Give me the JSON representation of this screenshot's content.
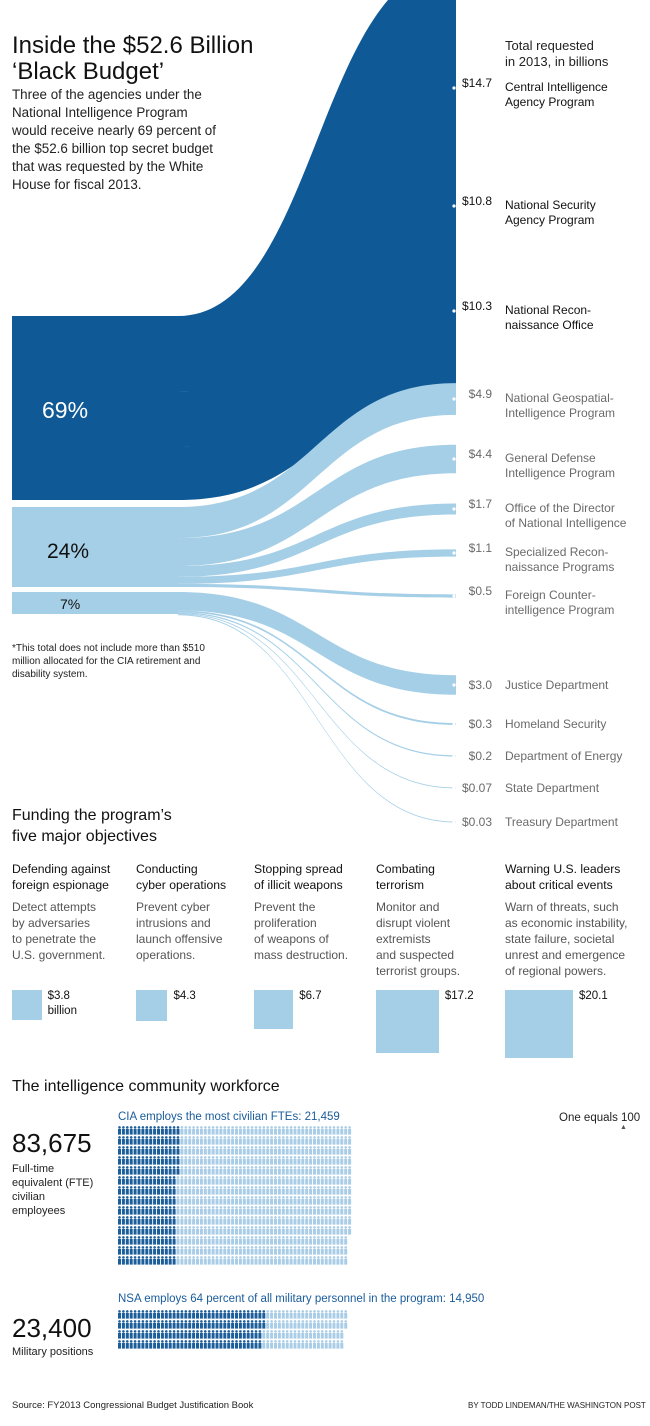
{
  "header": {
    "title_line1": "Inside the $52.6 Billion",
    "title_line2": "‘Black Budget’",
    "intro": "Three of the agencies under the National Intelligence Program would receive nearly 69 percent of the $52.6 billion top secret budget that was requested by the White House for fiscal 2013.",
    "total_label_line1": "Total requested",
    "total_label_line2": "in 2013, in billions"
  },
  "chart_data": [
    {
      "type": "flow",
      "title": "Inside the $52.6 Billion ‘Black Budget’",
      "unit": "billions of dollars",
      "groups": [
        {
          "label": "69%",
          "share": 69
        },
        {
          "label": "24%",
          "share": 24
        },
        {
          "label": "7%",
          "share": 7
        }
      ],
      "agencies": [
        {
          "name_line1": "Central Intelligence",
          "name_line2": "Agency Program",
          "value": 14.7,
          "amount": "$14.7",
          "group": 0
        },
        {
          "name_line1": "National Security",
          "name_line2": "Agency Program",
          "value": 10.8,
          "amount": "$10.8",
          "group": 0
        },
        {
          "name_line1": "National Recon-",
          "name_line2": "naissance Office",
          "value": 10.3,
          "amount": "$10.3",
          "group": 0
        },
        {
          "name_line1": "National Geospatial-",
          "name_line2": "Intelligence Program",
          "value": 4.9,
          "amount": "$4.9",
          "group": 1
        },
        {
          "name_line1": "General Defense",
          "name_line2": "Intelligence Program",
          "value": 4.4,
          "amount": "$4.4",
          "group": 1
        },
        {
          "name_line1": "Office of the Director",
          "name_line2": "of National Intelligence",
          "value": 1.7,
          "amount": "$1.7",
          "group": 1
        },
        {
          "name_line1": "Specialized Recon-",
          "name_line2": "naissance Programs",
          "value": 1.1,
          "amount": "$1.1",
          "group": 1
        },
        {
          "name_line1": "Foreign Counter-",
          "name_line2": "intelligence Program",
          "value": 0.5,
          "amount": "$0.5",
          "group": 1
        },
        {
          "name_line1": "Justice Department",
          "name_line2": "",
          "value": 3.0,
          "amount": "$3.0",
          "group": 2
        },
        {
          "name_line1": "Homeland Security",
          "name_line2": "",
          "value": 0.3,
          "amount": "$0.3",
          "group": 2
        },
        {
          "name_line1": "Department of Energy",
          "name_line2": "",
          "value": 0.2,
          "amount": "$0.2",
          "group": 2
        },
        {
          "name_line1": "State Department",
          "name_line2": "",
          "value": 0.07,
          "amount": "$0.07",
          "group": 2
        },
        {
          "name_line1": "Treasury Department",
          "name_line2": "",
          "value": 0.03,
          "amount": "$0.03",
          "group": 2
        }
      ]
    },
    {
      "type": "bar",
      "title": "Funding the program’s five major objectives",
      "unit": "billions of dollars",
      "categories": [
        "Defending against foreign espionage",
        "Conducting cyber operations",
        "Stopping spread of illicit weapons",
        "Combating terrorism",
        "Warning U.S. leaders about critical events"
      ],
      "values": [
        3.8,
        4.3,
        6.7,
        17.2,
        20.1
      ]
    },
    {
      "type": "pictogram",
      "title": "The intelligence community workforce",
      "unit": "One equals 100",
      "series": [
        {
          "name": "Full-time equivalent (FTE) civilian employees",
          "total": 83675,
          "highlight_name": "CIA",
          "highlight": 21459
        },
        {
          "name": "Military positions",
          "total": 23400,
          "highlight_name": "NSA",
          "highlight": 14950
        }
      ]
    }
  ],
  "footnote": "*This total does not include more than $510 million allocated for the CIA retirement and disability system.",
  "objectives": {
    "title_line1": "Funding the program’s",
    "title_line2": "five major objectives",
    "items": [
      {
        "title_line1": "Defending against",
        "title_line2": "foreign espionage",
        "desc": [
          "Detect attempts",
          "by adversaries",
          "to penetrate the",
          "U.S. government."
        ],
        "value_line1": "$3.8",
        "value_line2": "billion"
      },
      {
        "title_line1": "Conducting",
        "title_line2": "cyber operations",
        "desc": [
          "Prevent cyber",
          "intrusions and",
          "launch offensive",
          "operations."
        ],
        "value_line1": "$4.3",
        "value_line2": ""
      },
      {
        "title_line1": "Stopping spread",
        "title_line2": "of illicit weapons",
        "desc": [
          "Prevent the",
          "proliferation",
          "of weapons of",
          "mass destruction."
        ],
        "value_line1": "$6.7",
        "value_line2": ""
      },
      {
        "title_line1": "Combating",
        "title_line2": "terrorism",
        "desc": [
          "Monitor and",
          "disrupt violent",
          "extremists",
          "and suspected",
          "terrorist groups."
        ],
        "value_line1": "$17.2",
        "value_line2": ""
      },
      {
        "title_line1": "Warning U.S. leaders",
        "title_line2": "about critical events",
        "desc": [
          "Warn of threats, such",
          "as economic instability,",
          "state failure, societal",
          "unrest and emergence",
          "of regional powers."
        ],
        "value_line1": "$20.1",
        "value_line2": ""
      }
    ]
  },
  "workforce": {
    "title": "The intelligence community workforce",
    "civilian_note": "CIA employs the most civilian FTEs: 21,459",
    "legend": "One equals 100",
    "civilian_number": "83,675",
    "civilian_label": [
      "Full-time",
      "equivalent (FTE)",
      "civilian",
      "employees"
    ],
    "military_note": "NSA employs 64 percent of all military personnel in the program: 14,950",
    "military_number": "23,400",
    "military_label": "Military positions"
  },
  "footer": {
    "source": "Source: FY2013 Congressional Budget Justification Book",
    "credit": "BY TODD LINDEMAN/THE WASHINGTON POST"
  },
  "colors": {
    "dark_blue": "#0f5a96",
    "light_blue": "#a5cfe7",
    "icon_light": "#a9cde6",
    "icon_dark": "#1c5e99"
  }
}
